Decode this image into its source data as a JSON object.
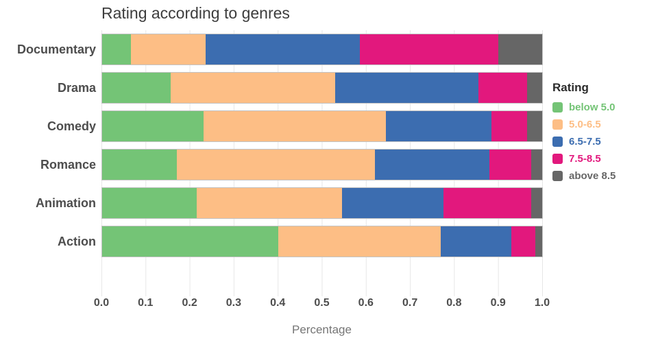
{
  "chart_data": {
    "type": "bar",
    "orientation": "horizontal",
    "stacked": true,
    "title": "Rating according to genres",
    "xlabel": "Percentage",
    "legend_title": "Rating",
    "legend_position": "right",
    "grid": "vertical",
    "xlim": [
      0,
      1
    ],
    "x_ticks": [
      "0.0",
      "0.1",
      "0.2",
      "0.3",
      "0.4",
      "0.5",
      "0.6",
      "0.7",
      "0.8",
      "0.9",
      "1.0"
    ],
    "categories": [
      "Documentary",
      "Drama",
      "Comedy",
      "Romance",
      "Animation",
      "Action"
    ],
    "series": [
      {
        "name": "below 5.0",
        "color": "#74c476",
        "values": [
          0.065,
          0.155,
          0.23,
          0.17,
          0.215,
          0.4
        ]
      },
      {
        "name": "5.0-6.5",
        "color": "#fdbe85",
        "values": [
          0.17,
          0.375,
          0.415,
          0.45,
          0.33,
          0.37
        ]
      },
      {
        "name": "6.5-7.5",
        "color": "#3c6db0",
        "values": [
          0.35,
          0.325,
          0.24,
          0.26,
          0.23,
          0.16
        ]
      },
      {
        "name": "7.5-8.5",
        "color": "#e2187d",
        "values": [
          0.315,
          0.11,
          0.08,
          0.095,
          0.2,
          0.055
        ]
      },
      {
        "name": "above 8.5",
        "color": "#666666",
        "values": [
          0.1,
          0.035,
          0.035,
          0.025,
          0.025,
          0.015
        ]
      }
    ]
  }
}
